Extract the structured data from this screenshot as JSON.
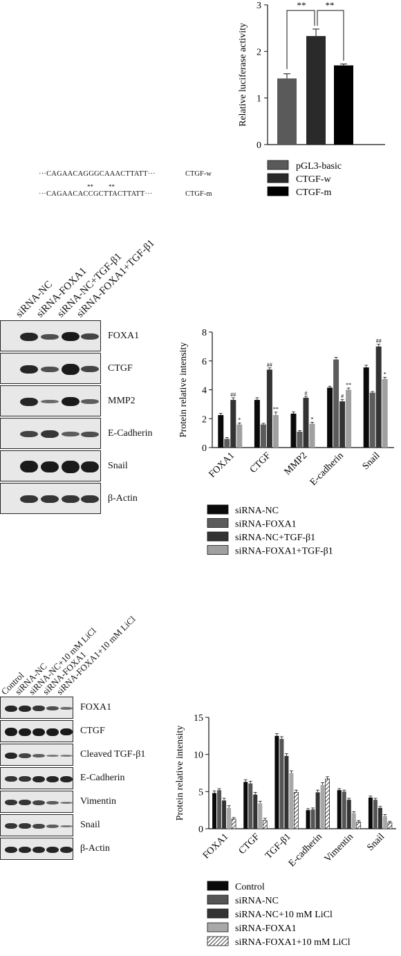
{
  "panel_a": {
    "sequences": [
      {
        "text": "···CAGAACAGGGCAAACTTATT···",
        "label": "CTGF-w"
      },
      {
        "text": "···CAGAACACCGCTTACTTATT···",
        "label": "CTGF-m",
        "marks": "**"
      }
    ]
  },
  "panel_b": {
    "lanes": [
      "siRNA-NC",
      "siRNA-FOXA1",
      "siRNA-NC+TGF-β1",
      "siRNA-FOXA1+TGF-β1"
    ],
    "blots": [
      "FOXA1",
      "CTGF",
      "MMP2",
      "E-Cadherin",
      "Snail",
      "β-Actin"
    ]
  },
  "panel_c": {
    "lanes": [
      "Control",
      "siRNA-NC",
      "siRNA-NC+10 mM LiCl",
      "siRNA-FOXA1",
      "siRNA-FOXA1+10 mM LiCl"
    ],
    "blots": [
      "FOXA1",
      "CTGF",
      "Cleaved TGF-β1",
      "E-Cadherin",
      "Vimentin",
      "Snail",
      "β-Actin"
    ]
  },
  "chart_data": [
    {
      "type": "bar",
      "ylabel": "Relative luciferase activity",
      "ylim": [
        0,
        3
      ],
      "yticks": [
        0,
        1,
        2,
        3
      ],
      "series": [
        {
          "name": "pGL3-basic",
          "value": 1.42,
          "err": 0.1,
          "color": "#5a5a5a"
        },
        {
          "name": "CTGF-w",
          "value": 2.33,
          "err": 0.15,
          "color": "#2a2a2a"
        },
        {
          "name": "CTGF-m",
          "value": 1.7,
          "err": 0.03,
          "color": "#000000"
        }
      ],
      "annotations": [
        "**",
        "**"
      ],
      "legend": "bottom"
    },
    {
      "type": "bar",
      "ylabel": "Protein relative intensity",
      "ylim": [
        0,
        8
      ],
      "yticks": [
        0,
        2,
        4,
        6,
        8
      ],
      "categories": [
        "FOXA1",
        "CTGF",
        "MMP2",
        "E-cadherin",
        "Snail"
      ],
      "series": [
        {
          "name": "siRNA-NC",
          "values": [
            2.25,
            3.3,
            2.35,
            4.15,
            5.55
          ],
          "errs": [
            0.12,
            0.15,
            0.12,
            0.1,
            0.15
          ],
          "color": "#0a0a0a"
        },
        {
          "name": "siRNA-FOXA1",
          "values": [
            0.6,
            1.6,
            1.1,
            6.1,
            3.8
          ],
          "errs": [
            0.1,
            0.08,
            0.08,
            0.15,
            0.08
          ],
          "color": "#5c5c5c"
        },
        {
          "name": "siRNA-NC+TGF-β1",
          "values": [
            3.3,
            5.4,
            3.45,
            3.2,
            7.0
          ],
          "errs": [
            0.15,
            0.12,
            0.1,
            0.12,
            0.15
          ],
          "color": "#333333"
        },
        {
          "name": "siRNA-FOXA1+TGF-β1",
          "values": [
            1.6,
            2.25,
            1.65,
            4.0,
            4.75
          ],
          "errs": [
            0.1,
            0.2,
            0.1,
            0.12,
            0.12
          ],
          "color": "#a0a0a0"
        }
      ],
      "marks": [
        [
          "",
          "",
          "##",
          "*"
        ],
        [
          "",
          "",
          "##",
          "**"
        ],
        [
          "",
          "",
          "#",
          "*"
        ],
        [
          "",
          "",
          "#",
          "**"
        ],
        [
          "",
          "",
          "##",
          "*"
        ]
      ],
      "legend": "bottom"
    },
    {
      "type": "bar",
      "ylabel": "Protein relative intensity",
      "ylim": [
        0,
        15
      ],
      "yticks": [
        0,
        5,
        10,
        15
      ],
      "categories": [
        "FOXA1",
        "CTGF",
        "TGF-β1",
        "E-cadherin",
        "Vimentin",
        "Snail"
      ],
      "series": [
        {
          "name": "Control",
          "values": [
            4.8,
            6.3,
            12.5,
            2.5,
            5.2,
            4.2
          ],
          "errs": [
            0.3,
            0.3,
            0.3,
            0.2,
            0.2,
            0.2
          ],
          "color": "#0a0a0a"
        },
        {
          "name": "siRNA-NC",
          "values": [
            5.2,
            6.1,
            12.1,
            2.6,
            5.0,
            3.9
          ],
          "errs": [
            0.2,
            0.3,
            0.3,
            0.2,
            0.2,
            0.2
          ],
          "color": "#555555"
        },
        {
          "name": "siRNA-NC+10 mM LiCl",
          "values": [
            3.8,
            4.6,
            9.8,
            4.9,
            3.9,
            2.8
          ],
          "errs": [
            0.3,
            0.3,
            0.3,
            0.3,
            0.2,
            0.2
          ],
          "color": "#333333"
        },
        {
          "name": "siRNA-FOXA1",
          "values": [
            2.8,
            3.4,
            7.5,
            5.9,
            2.1,
            1.7
          ],
          "errs": [
            0.3,
            0.3,
            0.3,
            0.3,
            0.2,
            0.2
          ],
          "color": "#a8a8a8"
        },
        {
          "name": "siRNA-FOXA1+10 mM LiCl",
          "values": [
            1.3,
            1.1,
            4.9,
            6.7,
            0.9,
            0.8
          ],
          "errs": [
            0.2,
            0.3,
            0.3,
            0.3,
            0.2,
            0.2
          ],
          "color": "hatch"
        }
      ],
      "legend": "bottom"
    }
  ]
}
